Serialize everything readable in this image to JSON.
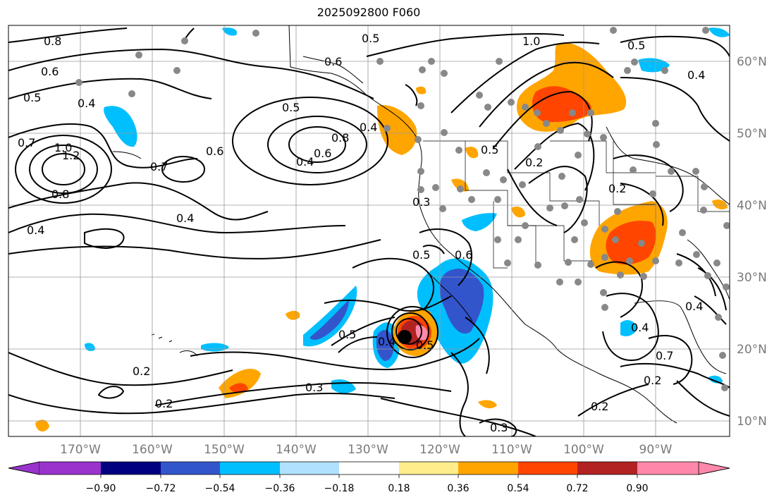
{
  "title": "2025092800 F060",
  "map": {
    "lat_labels": [
      "60°N",
      "50°N",
      "40°N",
      "30°N",
      "20°N",
      "10°N"
    ],
    "lon_labels": [
      "170°W",
      "160°W",
      "150°W",
      "140°W",
      "130°W",
      "120°W",
      "110°W",
      "100°W",
      "90°W"
    ],
    "contour_labels": [
      "0.8",
      "0.6",
      "0.5",
      "0.4",
      "0.7",
      "1.0",
      "1.2",
      "0.8",
      "0.4",
      "0.7",
      "0.6",
      "0.4",
      "0.5",
      "0.6",
      "0.8",
      "0.4",
      "0.5",
      "0.6",
      "0.5",
      "0.4",
      "1.0",
      "0.5",
      "0.4",
      "0.3",
      "0.5",
      "0.6",
      "0.5",
      "0.4",
      "0.5",
      "0.2",
      "0.2",
      "0.3",
      "0.2",
      "0.3",
      "0.2",
      "0.4",
      "0.4",
      "0.2",
      "0.7",
      "0.2"
    ],
    "station_markers": "grey-dots",
    "hurricane_icon": "tropical-cyclone-icon"
  },
  "colorbar": {
    "ticks": [
      "−0.90",
      "−0.72",
      "−0.54",
      "−0.36",
      "−0.18",
      "0.18",
      "0.36",
      "0.54",
      "0.72",
      "0.90"
    ],
    "colors": [
      "#9933cc",
      "#000080",
      "#3355cc",
      "#00bfff",
      "#b0e2ff",
      "#ffffff",
      "#ffec8b",
      "#ffa500",
      "#ff4500",
      "#b22222",
      "#ff88aa"
    ]
  }
}
